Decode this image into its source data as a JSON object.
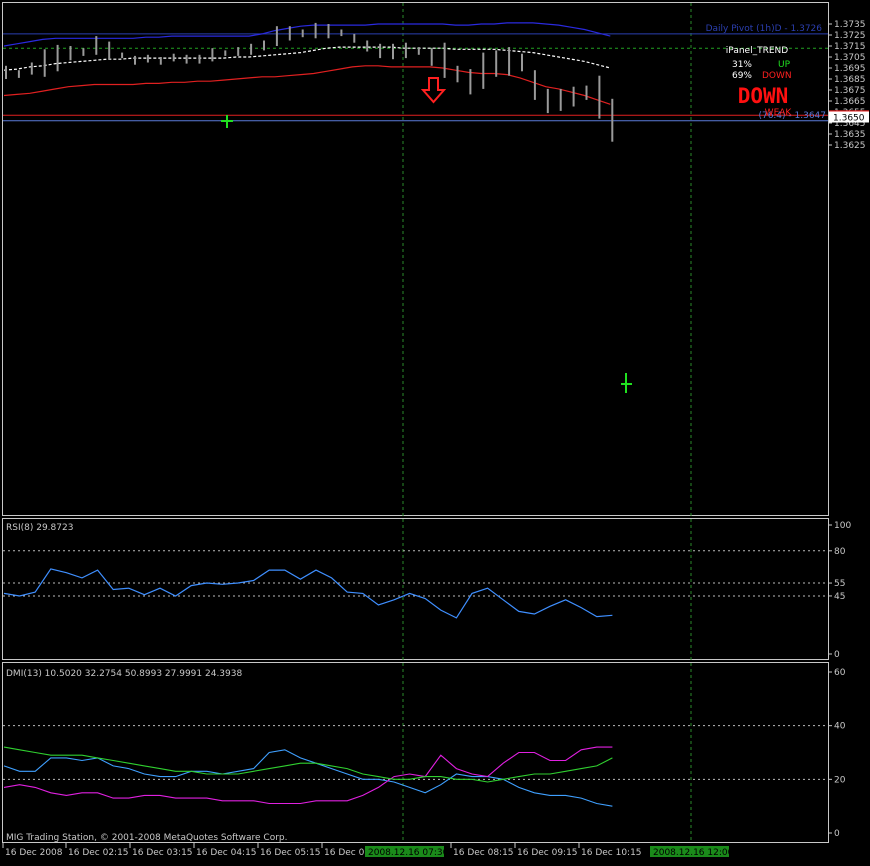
{
  "copyright": "MIG Trading Station, © 2001-2008 MetaQuotes Software Corp.",
  "chart_data": [
    {
      "type": "bar",
      "name": "price",
      "yticks": [
        1.3625,
        1.3635,
        1.3645,
        1.3655,
        1.3665,
        1.3675,
        1.3685,
        1.3695,
        1.3705,
        1.3715,
        1.3725,
        1.3735
      ],
      "ylim": [
        1.362,
        1.374
      ],
      "bars_hl": [
        [
          1.3697,
          1.3685
        ],
        [
          1.3693,
          1.3686
        ],
        [
          1.37,
          1.3689
        ],
        [
          1.3712,
          1.3687
        ],
        [
          1.3716,
          1.3692
        ],
        [
          1.3715,
          1.3702
        ],
        [
          1.3713,
          1.3706
        ],
        [
          1.3724,
          1.3707
        ],
        [
          1.3719,
          1.3703
        ],
        [
          1.3709,
          1.3704
        ],
        [
          1.3706,
          1.3698
        ],
        [
          1.3707,
          1.37
        ],
        [
          1.3705,
          1.3698
        ],
        [
          1.3708,
          1.3701
        ],
        [
          1.3707,
          1.3699
        ],
        [
          1.3707,
          1.3699
        ],
        [
          1.3713,
          1.3701
        ],
        [
          1.3711,
          1.3706
        ],
        [
          1.3714,
          1.3706
        ],
        [
          1.3717,
          1.3707
        ],
        [
          1.372,
          1.3711
        ],
        [
          1.3733,
          1.3715
        ],
        [
          1.3733,
          1.372
        ],
        [
          1.373,
          1.3723
        ],
        [
          1.3736,
          1.3722
        ],
        [
          1.3735,
          1.3722
        ],
        [
          1.373,
          1.3724
        ],
        [
          1.3726,
          1.3718
        ],
        [
          1.372,
          1.371
        ],
        [
          1.3717,
          1.3704
        ],
        [
          1.3717,
          1.3703
        ],
        [
          1.3718,
          1.3704
        ],
        [
          1.3714,
          1.3707
        ],
        [
          1.3713,
          1.3697
        ],
        [
          1.3718,
          1.3686
        ],
        [
          1.3697,
          1.3682
        ],
        [
          1.3694,
          1.3671
        ],
        [
          1.3709,
          1.3676
        ],
        [
          1.3711,
          1.3687
        ],
        [
          1.3714,
          1.3688
        ],
        [
          1.3708,
          1.3692
        ],
        [
          1.3693,
          1.3666
        ],
        [
          1.3676,
          1.3654
        ],
        [
          1.3676,
          1.3656
        ],
        [
          1.3678,
          1.366
        ],
        [
          1.3679,
          1.3666
        ],
        [
          1.3688,
          1.3649
        ],
        [
          1.3667,
          1.3628
        ]
      ],
      "upper_band": [
        1.3715,
        1.3717,
        1.3719,
        1.3721,
        1.3722,
        1.3722,
        1.3722,
        1.3722,
        1.3722,
        1.3722,
        1.3722,
        1.3723,
        1.3723,
        1.3724,
        1.3724,
        1.3724,
        1.3724,
        1.3724,
        1.3724,
        1.3724,
        1.3726,
        1.3729,
        1.3731,
        1.3733,
        1.3734,
        1.3734,
        1.3734,
        1.3734,
        1.3734,
        1.3735,
        1.3735,
        1.3735,
        1.3735,
        1.3735,
        1.3735,
        1.3734,
        1.3734,
        1.3735,
        1.3735,
        1.3736,
        1.3736,
        1.3736,
        1.3735,
        1.3734,
        1.3732,
        1.373,
        1.3727,
        1.3724
      ],
      "middle_band": [
        1.3693,
        1.3694,
        1.3696,
        1.3697,
        1.3699,
        1.37,
        1.3701,
        1.3702,
        1.3703,
        1.3703,
        1.3704,
        1.3704,
        1.3704,
        1.3704,
        1.3704,
        1.3704,
        1.3704,
        1.3704,
        1.3705,
        1.3705,
        1.3706,
        1.3707,
        1.3708,
        1.3709,
        1.3711,
        1.3713,
        1.3714,
        1.3714,
        1.3714,
        1.3714,
        1.3714,
        1.3713,
        1.3713,
        1.3713,
        1.3713,
        1.3712,
        1.3712,
        1.3712,
        1.3712,
        1.3711,
        1.371,
        1.3709,
        1.3707,
        1.3705,
        1.3703,
        1.3701,
        1.3698,
        1.3695
      ],
      "lower_band": [
        1.367,
        1.3671,
        1.3672,
        1.3674,
        1.3676,
        1.3678,
        1.3679,
        1.368,
        1.368,
        1.368,
        1.368,
        1.3681,
        1.3681,
        1.3682,
        1.3682,
        1.3683,
        1.3683,
        1.3684,
        1.3685,
        1.3686,
        1.3687,
        1.3687,
        1.3688,
        1.3689,
        1.369,
        1.3692,
        1.3694,
        1.3696,
        1.3697,
        1.3697,
        1.3696,
        1.3696,
        1.3696,
        1.3696,
        1.3695,
        1.3693,
        1.3691,
        1.369,
        1.369,
        1.3689,
        1.3686,
        1.3682,
        1.3678,
        1.3676,
        1.3673,
        1.367,
        1.3666,
        1.3662
      ],
      "hlines": [
        {
          "value": 1.3726,
          "color": "#2b3fb0",
          "label": "Daily Pivot (1h)D - 1.3726"
        },
        {
          "value": 1.3713,
          "color": "#23a123",
          "dash": true
        },
        {
          "value": 1.3652,
          "color": "#e02020",
          "label": "1.3652"
        },
        {
          "value": 1.3647,
          "color": "#5a7ad8",
          "label": "(76.4) - 1.3647"
        }
      ],
      "current_price": "1.3650"
    },
    {
      "type": "line",
      "name": "rsi",
      "title": "RSI(8) 29.8723",
      "yticks": [
        0,
        45,
        55,
        80,
        100
      ],
      "dashed_levels": [
        45,
        55,
        80
      ],
      "ylim": [
        0,
        100
      ],
      "values": [
        47,
        45,
        48,
        66,
        63,
        59,
        65,
        50,
        51,
        46,
        51,
        45,
        53,
        55,
        54,
        55,
        57,
        65,
        65,
        58,
        65,
        59,
        48,
        47,
        38,
        42,
        47,
        43,
        34,
        28,
        47,
        51,
        42,
        33,
        31,
        37,
        42,
        36,
        29,
        30
      ]
    },
    {
      "type": "line",
      "name": "dmi",
      "title": "DMI(13) 10.5020 32.2754 50.8993 27.9991 24.3938",
      "yticks": [
        0,
        20,
        40,
        60
      ],
      "dashed_levels": [
        20,
        40
      ],
      "ylim": [
        0,
        60
      ],
      "series": [
        {
          "color": "#3fa0ff",
          "values": [
            25,
            23,
            23,
            28,
            28,
            27,
            28,
            25,
            24,
            22,
            21,
            21,
            23,
            23,
            22,
            23,
            24,
            30,
            31,
            28,
            26,
            24,
            22,
            20,
            20,
            19,
            17,
            15,
            18,
            22,
            21,
            21,
            20,
            17,
            15,
            14,
            14,
            13,
            11,
            10
          ]
        },
        {
          "color": "#e020e0",
          "values": [
            17,
            18,
            17,
            15,
            14,
            15,
            15,
            13,
            13,
            14,
            14,
            13,
            13,
            13,
            12,
            12,
            12,
            11,
            11,
            11,
            12,
            12,
            12,
            14,
            17,
            21,
            22,
            21,
            29,
            24,
            22,
            21,
            26,
            30,
            30,
            27,
            27,
            31,
            32,
            32
          ]
        },
        {
          "color": "#30d030",
          "values": [
            32,
            31,
            30,
            29,
            29,
            29,
            28,
            27,
            26,
            25,
            24,
            23,
            23,
            22,
            22,
            22,
            23,
            24,
            25,
            26,
            26,
            25,
            24,
            22,
            21,
            20,
            20,
            21,
            21,
            20,
            20,
            19,
            20,
            21,
            22,
            22,
            23,
            24,
            25,
            28
          ]
        }
      ]
    }
  ],
  "x_labels": [
    "16 Dec 2008",
    "16 Dec 02:15",
    "16 Dec 03:15",
    "16 Dec 04:15",
    "16 Dec 05:15",
    "16 Dec 06",
    "16 Dec 08:15",
    "16 Dec 09:15",
    "16 Dec 10:15"
  ],
  "x_highlight_labels": [
    "2008.12.16 07:30",
    "2008.12.16 12:00"
  ],
  "ipanel": {
    "title": "iPanel_TREND",
    "row1_pct": "31%",
    "row1_label": "UP",
    "row2_pct": "69%",
    "row2_label": "DOWN",
    "status": "DOWN",
    "strength": "WEAK"
  },
  "colors": {
    "bars": "#9a9a9a",
    "upper_band": "#2a2ae0",
    "middle_band": "#ffffff",
    "lower_band": "#e02020",
    "grid": "#2a8a2a",
    "axis": "#c8c8c8",
    "up": "#20e020",
    "down": "#ff2020"
  }
}
